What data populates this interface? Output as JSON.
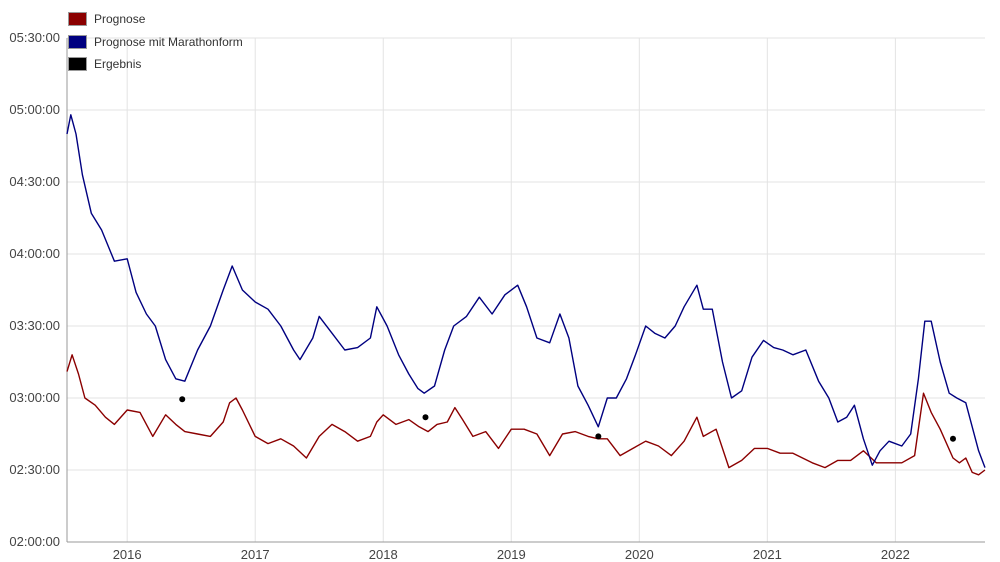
{
  "chart_data": {
    "type": "line",
    "title": "",
    "xlabel": "",
    "ylabel": "",
    "x_ticks": [
      "2016",
      "2017",
      "2018",
      "2019",
      "2020",
      "2021",
      "2022"
    ],
    "y_ticks": [
      "05:30:00",
      "05:00:00",
      "04:30:00",
      "04:00:00",
      "03:30:00",
      "03:00:00",
      "02:30:00",
      "02:00:00"
    ],
    "xlim": [
      2015.53,
      2022.7
    ],
    "ylim": [
      "02:00:00",
      "05:30:00"
    ],
    "grid": true,
    "legend_position": "top-left",
    "series": [
      {
        "name": "Prognose",
        "color": "#8b0000",
        "points": [
          [
            2015.53,
            "03:11:00"
          ],
          [
            2015.57,
            "03:18:00"
          ],
          [
            2015.62,
            "03:10:00"
          ],
          [
            2015.67,
            "03:00:00"
          ],
          [
            2015.75,
            "02:57:00"
          ],
          [
            2015.83,
            "02:52:00"
          ],
          [
            2015.9,
            "02:49:00"
          ],
          [
            2016.0,
            "02:55:00"
          ],
          [
            2016.1,
            "02:54:00"
          ],
          [
            2016.2,
            "02:44:00"
          ],
          [
            2016.3,
            "02:53:00"
          ],
          [
            2016.38,
            "02:49:00"
          ],
          [
            2016.45,
            "02:46:00"
          ],
          [
            2016.55,
            "02:45:00"
          ],
          [
            2016.65,
            "02:44:00"
          ],
          [
            2016.75,
            "02:50:00"
          ],
          [
            2016.8,
            "02:58:00"
          ],
          [
            2016.85,
            "03:00:00"
          ],
          [
            2016.9,
            "02:55:00"
          ],
          [
            2017.0,
            "02:44:00"
          ],
          [
            2017.1,
            "02:41:00"
          ],
          [
            2017.2,
            "02:43:00"
          ],
          [
            2017.3,
            "02:40:00"
          ],
          [
            2017.4,
            "02:35:00"
          ],
          [
            2017.5,
            "02:44:00"
          ],
          [
            2017.6,
            "02:49:00"
          ],
          [
            2017.7,
            "02:46:00"
          ],
          [
            2017.8,
            "02:42:00"
          ],
          [
            2017.9,
            "02:44:00"
          ],
          [
            2017.95,
            "02:50:00"
          ],
          [
            2018.0,
            "02:53:00"
          ],
          [
            2018.1,
            "02:49:00"
          ],
          [
            2018.2,
            "02:51:00"
          ],
          [
            2018.28,
            "02:48:00"
          ],
          [
            2018.35,
            "02:46:00"
          ],
          [
            2018.42,
            "02:49:00"
          ],
          [
            2018.5,
            "02:50:00"
          ],
          [
            2018.56,
            "02:56:00"
          ],
          [
            2018.62,
            "02:51:00"
          ],
          [
            2018.7,
            "02:44:00"
          ],
          [
            2018.8,
            "02:46:00"
          ],
          [
            2018.9,
            "02:39:00"
          ],
          [
            2019.0,
            "02:47:00"
          ],
          [
            2019.1,
            "02:47:00"
          ],
          [
            2019.2,
            "02:45:00"
          ],
          [
            2019.3,
            "02:36:00"
          ],
          [
            2019.4,
            "02:45:00"
          ],
          [
            2019.5,
            "02:46:00"
          ],
          [
            2019.6,
            "02:44:00"
          ],
          [
            2019.68,
            "02:43:00"
          ],
          [
            2019.75,
            "02:43:00"
          ],
          [
            2019.85,
            "02:36:00"
          ],
          [
            2019.95,
            "02:39:00"
          ],
          [
            2020.05,
            "02:42:00"
          ],
          [
            2020.15,
            "02:40:00"
          ],
          [
            2020.25,
            "02:36:00"
          ],
          [
            2020.35,
            "02:42:00"
          ],
          [
            2020.45,
            "02:52:00"
          ],
          [
            2020.5,
            "02:44:00"
          ],
          [
            2020.6,
            "02:47:00"
          ],
          [
            2020.7,
            "02:31:00"
          ],
          [
            2020.8,
            "02:34:00"
          ],
          [
            2020.9,
            "02:39:00"
          ],
          [
            2021.0,
            "02:39:00"
          ],
          [
            2021.1,
            "02:37:00"
          ],
          [
            2021.2,
            "02:37:00"
          ],
          [
            2021.35,
            "02:33:00"
          ],
          [
            2021.45,
            "02:31:00"
          ],
          [
            2021.55,
            "02:34:00"
          ],
          [
            2021.65,
            "02:34:00"
          ],
          [
            2021.75,
            "02:38:00"
          ],
          [
            2021.85,
            "02:33:00"
          ],
          [
            2021.95,
            "02:33:00"
          ],
          [
            2022.05,
            "02:33:00"
          ],
          [
            2022.15,
            "02:36:00"
          ],
          [
            2022.22,
            "03:02:00"
          ],
          [
            2022.28,
            "02:54:00"
          ],
          [
            2022.35,
            "02:47:00"
          ],
          [
            2022.45,
            "02:35:00"
          ],
          [
            2022.5,
            "02:33:00"
          ],
          [
            2022.55,
            "02:35:00"
          ],
          [
            2022.6,
            "02:29:00"
          ],
          [
            2022.65,
            "02:28:00"
          ],
          [
            2022.7,
            "02:30:00"
          ]
        ]
      },
      {
        "name": "Prognose mit Marathonform",
        "color": "#000080",
        "points": [
          [
            2015.53,
            "04:50:00"
          ],
          [
            2015.56,
            "04:58:00"
          ],
          [
            2015.6,
            "04:50:00"
          ],
          [
            2015.65,
            "04:33:00"
          ],
          [
            2015.72,
            "04:17:00"
          ],
          [
            2015.8,
            "04:10:00"
          ],
          [
            2015.9,
            "03:57:00"
          ],
          [
            2016.0,
            "03:58:00"
          ],
          [
            2016.07,
            "03:44:00"
          ],
          [
            2016.15,
            "03:35:00"
          ],
          [
            2016.22,
            "03:30:00"
          ],
          [
            2016.3,
            "03:16:00"
          ],
          [
            2016.38,
            "03:08:00"
          ],
          [
            2016.45,
            "03:07:00"
          ],
          [
            2016.55,
            "03:20:00"
          ],
          [
            2016.65,
            "03:30:00"
          ],
          [
            2016.75,
            "03:45:00"
          ],
          [
            2016.82,
            "03:55:00"
          ],
          [
            2016.9,
            "03:45:00"
          ],
          [
            2017.0,
            "03:40:00"
          ],
          [
            2017.1,
            "03:37:00"
          ],
          [
            2017.2,
            "03:30:00"
          ],
          [
            2017.3,
            "03:20:00"
          ],
          [
            2017.35,
            "03:16:00"
          ],
          [
            2017.45,
            "03:25:00"
          ],
          [
            2017.5,
            "03:34:00"
          ],
          [
            2017.6,
            "03:27:00"
          ],
          [
            2017.7,
            "03:20:00"
          ],
          [
            2017.8,
            "03:21:00"
          ],
          [
            2017.9,
            "03:25:00"
          ],
          [
            2017.95,
            "03:38:00"
          ],
          [
            2018.03,
            "03:30:00"
          ],
          [
            2018.12,
            "03:18:00"
          ],
          [
            2018.2,
            "03:10:00"
          ],
          [
            2018.27,
            "03:04:00"
          ],
          [
            2018.32,
            "03:02:00"
          ],
          [
            2018.4,
            "03:05:00"
          ],
          [
            2018.48,
            "03:20:00"
          ],
          [
            2018.55,
            "03:30:00"
          ],
          [
            2018.65,
            "03:34:00"
          ],
          [
            2018.75,
            "03:42:00"
          ],
          [
            2018.85,
            "03:35:00"
          ],
          [
            2018.95,
            "03:43:00"
          ],
          [
            2019.05,
            "03:47:00"
          ],
          [
            2019.12,
            "03:38:00"
          ],
          [
            2019.2,
            "03:25:00"
          ],
          [
            2019.3,
            "03:23:00"
          ],
          [
            2019.38,
            "03:35:00"
          ],
          [
            2019.45,
            "03:25:00"
          ],
          [
            2019.52,
            "03:05:00"
          ],
          [
            2019.6,
            "02:57:00"
          ],
          [
            2019.68,
            "02:48:00"
          ],
          [
            2019.75,
            "03:00:00"
          ],
          [
            2019.82,
            "03:00:00"
          ],
          [
            2019.9,
            "03:08:00"
          ],
          [
            2019.97,
            "03:18:00"
          ],
          [
            2020.05,
            "03:30:00"
          ],
          [
            2020.12,
            "03:27:00"
          ],
          [
            2020.2,
            "03:25:00"
          ],
          [
            2020.28,
            "03:30:00"
          ],
          [
            2020.35,
            "03:38:00"
          ],
          [
            2020.45,
            "03:47:00"
          ],
          [
            2020.5,
            "03:37:00"
          ],
          [
            2020.57,
            "03:37:00"
          ],
          [
            2020.65,
            "03:15:00"
          ],
          [
            2020.72,
            "03:00:00"
          ],
          [
            2020.8,
            "03:03:00"
          ],
          [
            2020.88,
            "03:17:00"
          ],
          [
            2020.97,
            "03:24:00"
          ],
          [
            2021.05,
            "03:21:00"
          ],
          [
            2021.12,
            "03:20:00"
          ],
          [
            2021.2,
            "03:18:00"
          ],
          [
            2021.3,
            "03:20:00"
          ],
          [
            2021.4,
            "03:07:00"
          ],
          [
            2021.48,
            "03:00:00"
          ],
          [
            2021.55,
            "02:50:00"
          ],
          [
            2021.62,
            "02:52:00"
          ],
          [
            2021.68,
            "02:57:00"
          ],
          [
            2021.75,
            "02:43:00"
          ],
          [
            2021.82,
            "02:32:00"
          ],
          [
            2021.88,
            "02:38:00"
          ],
          [
            2021.95,
            "02:42:00"
          ],
          [
            2022.05,
            "02:40:00"
          ],
          [
            2022.12,
            "02:45:00"
          ],
          [
            2022.18,
            "03:08:00"
          ],
          [
            2022.23,
            "03:32:00"
          ],
          [
            2022.28,
            "03:32:00"
          ],
          [
            2022.35,
            "03:15:00"
          ],
          [
            2022.42,
            "03:02:00"
          ],
          [
            2022.48,
            "03:00:00"
          ],
          [
            2022.55,
            "02:58:00"
          ],
          [
            2022.6,
            "02:48:00"
          ],
          [
            2022.65,
            "02:38:00"
          ],
          [
            2022.7,
            "02:31:00"
          ]
        ]
      },
      {
        "name": "Ergebnis",
        "color": "#000000",
        "points": [
          [
            2016.43,
            "02:59:30"
          ],
          [
            2018.33,
            "02:52:00"
          ],
          [
            2019.68,
            "02:44:00"
          ],
          [
            2022.45,
            "02:43:00"
          ]
        ]
      }
    ]
  }
}
